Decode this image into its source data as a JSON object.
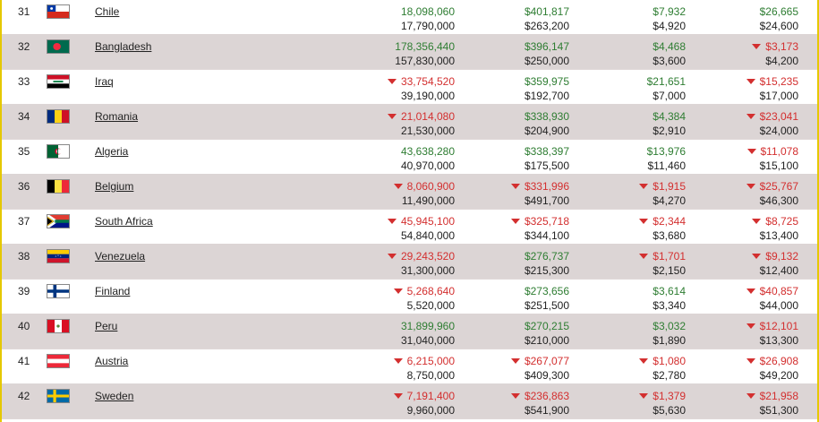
{
  "rows": [
    {
      "rank": "31",
      "country": "Chile",
      "flag": "chile",
      "c1": {
        "top": "18,098,060",
        "bottom": "17,790,000",
        "trend": "up",
        "arrow": false
      },
      "c2": {
        "top": "$401,817",
        "bottom": "$263,200",
        "trend": "up",
        "arrow": false
      },
      "c3": {
        "top": "$7,932",
        "bottom": "$4,920",
        "trend": "up",
        "arrow": false
      },
      "c4": {
        "top": "$26,665",
        "bottom": "$24,600",
        "trend": "up",
        "arrow": false
      }
    },
    {
      "rank": "32",
      "country": "Bangladesh",
      "flag": "bangladesh",
      "c1": {
        "top": "178,356,440",
        "bottom": "157,830,000",
        "trend": "up",
        "arrow": false
      },
      "c2": {
        "top": "$396,147",
        "bottom": "$250,000",
        "trend": "up",
        "arrow": false
      },
      "c3": {
        "top": "$4,468",
        "bottom": "$3,600",
        "trend": "up",
        "arrow": false
      },
      "c4": {
        "top": "$3,173",
        "bottom": "$4,200",
        "trend": "down",
        "arrow": true
      }
    },
    {
      "rank": "33",
      "country": "Iraq",
      "flag": "iraq",
      "c1": {
        "top": "33,754,520",
        "bottom": "39,190,000",
        "trend": "down",
        "arrow": true
      },
      "c2": {
        "top": "$359,975",
        "bottom": "$192,700",
        "trend": "up",
        "arrow": false
      },
      "c3": {
        "top": "$21,651",
        "bottom": "$7,000",
        "trend": "up",
        "arrow": false
      },
      "c4": {
        "top": "$15,235",
        "bottom": "$17,000",
        "trend": "down",
        "arrow": true
      }
    },
    {
      "rank": "34",
      "country": "Romania",
      "flag": "romania",
      "c1": {
        "top": "21,014,080",
        "bottom": "21,530,000",
        "trend": "down",
        "arrow": true
      },
      "c2": {
        "top": "$338,930",
        "bottom": "$204,900",
        "trend": "up",
        "arrow": false
      },
      "c3": {
        "top": "$4,384",
        "bottom": "$2,910",
        "trend": "up",
        "arrow": false
      },
      "c4": {
        "top": "$23,041",
        "bottom": "$24,000",
        "trend": "down",
        "arrow": true
      }
    },
    {
      "rank": "35",
      "country": "Algeria",
      "flag": "algeria",
      "c1": {
        "top": "43,638,280",
        "bottom": "40,970,000",
        "trend": "up",
        "arrow": false
      },
      "c2": {
        "top": "$338,397",
        "bottom": "$175,500",
        "trend": "up",
        "arrow": false
      },
      "c3": {
        "top": "$13,976",
        "bottom": "$11,460",
        "trend": "up",
        "arrow": false
      },
      "c4": {
        "top": "$11,078",
        "bottom": "$15,100",
        "trend": "down",
        "arrow": true
      }
    },
    {
      "rank": "36",
      "country": "Belgium",
      "flag": "belgium",
      "c1": {
        "top": "8,060,900",
        "bottom": "11,490,000",
        "trend": "down",
        "arrow": true
      },
      "c2": {
        "top": "$331,996",
        "bottom": "$491,700",
        "trend": "down",
        "arrow": true
      },
      "c3": {
        "top": "$1,915",
        "bottom": "$4,270",
        "trend": "down",
        "arrow": true
      },
      "c4": {
        "top": "$25,767",
        "bottom": "$46,300",
        "trend": "down",
        "arrow": true
      }
    },
    {
      "rank": "37",
      "country": "South Africa",
      "flag": "south-africa",
      "c1": {
        "top": "45,945,100",
        "bottom": "54,840,000",
        "trend": "down",
        "arrow": true
      },
      "c2": {
        "top": "$325,718",
        "bottom": "$344,100",
        "trend": "down",
        "arrow": true
      },
      "c3": {
        "top": "$2,344",
        "bottom": "$3,680",
        "trend": "down",
        "arrow": true
      },
      "c4": {
        "top": "$8,725",
        "bottom": "$13,400",
        "trend": "down",
        "arrow": true
      }
    },
    {
      "rank": "38",
      "country": "Venezuela",
      "flag": "venezuela",
      "c1": {
        "top": "29,243,520",
        "bottom": "31,300,000",
        "trend": "down",
        "arrow": true
      },
      "c2": {
        "top": "$276,737",
        "bottom": "$215,300",
        "trend": "up",
        "arrow": false
      },
      "c3": {
        "top": "$1,701",
        "bottom": "$2,150",
        "trend": "down",
        "arrow": true
      },
      "c4": {
        "top": "$9,132",
        "bottom": "$12,400",
        "trend": "down",
        "arrow": true
      }
    },
    {
      "rank": "39",
      "country": "Finland",
      "flag": "finland",
      "c1": {
        "top": "5,268,640",
        "bottom": "5,520,000",
        "trend": "down",
        "arrow": true
      },
      "c2": {
        "top": "$273,656",
        "bottom": "$251,500",
        "trend": "up",
        "arrow": false
      },
      "c3": {
        "top": "$3,614",
        "bottom": "$3,340",
        "trend": "up",
        "arrow": false
      },
      "c4": {
        "top": "$40,857",
        "bottom": "$44,000",
        "trend": "down",
        "arrow": true
      }
    },
    {
      "rank": "40",
      "country": "Peru",
      "flag": "peru",
      "c1": {
        "top": "31,899,960",
        "bottom": "31,040,000",
        "trend": "up",
        "arrow": false
      },
      "c2": {
        "top": "$270,215",
        "bottom": "$210,000",
        "trend": "up",
        "arrow": false
      },
      "c3": {
        "top": "$3,032",
        "bottom": "$1,890",
        "trend": "up",
        "arrow": false
      },
      "c4": {
        "top": "$12,101",
        "bottom": "$13,300",
        "trend": "down",
        "arrow": true
      }
    },
    {
      "rank": "41",
      "country": "Austria",
      "flag": "austria",
      "c1": {
        "top": "6,215,000",
        "bottom": "8,750,000",
        "trend": "down",
        "arrow": true
      },
      "c2": {
        "top": "$267,077",
        "bottom": "$409,300",
        "trend": "down",
        "arrow": true
      },
      "c3": {
        "top": "$1,080",
        "bottom": "$2,780",
        "trend": "down",
        "arrow": true
      },
      "c4": {
        "top": "$26,908",
        "bottom": "$49,200",
        "trend": "down",
        "arrow": true
      }
    },
    {
      "rank": "42",
      "country": "Sweden",
      "flag": "sweden",
      "c1": {
        "top": "7,191,400",
        "bottom": "9,960,000",
        "trend": "down",
        "arrow": true
      },
      "c2": {
        "top": "$236,863",
        "bottom": "$541,900",
        "trend": "down",
        "arrow": true
      },
      "c3": {
        "top": "$1,379",
        "bottom": "$5,630",
        "trend": "down",
        "arrow": true
      },
      "c4": {
        "top": "$21,958",
        "bottom": "$51,300",
        "trend": "down",
        "arrow": true
      }
    }
  ],
  "colors": {
    "up": "#2e7d32",
    "down": "#d32f2f",
    "row_alt": "#dcd5d5",
    "frame": "#e5c800"
  }
}
